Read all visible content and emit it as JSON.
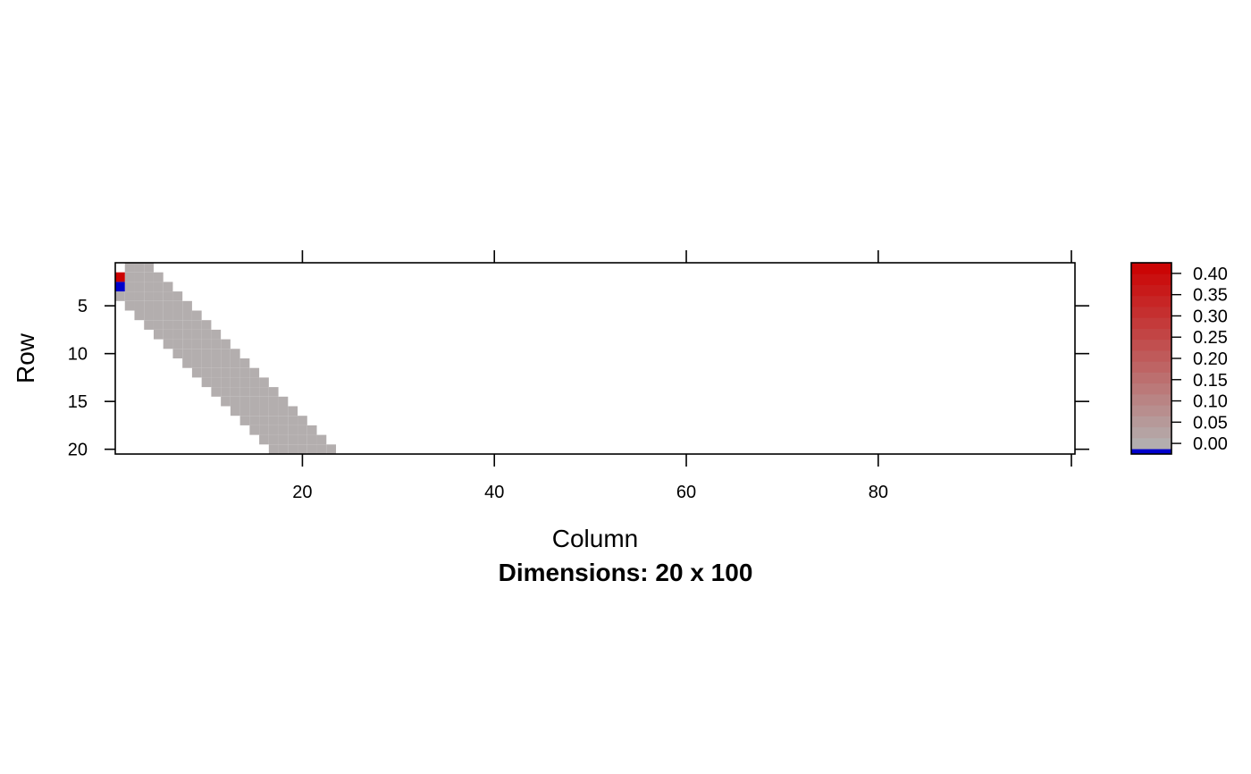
{
  "chart_data": {
    "type": "heatmap",
    "nrow": 20,
    "ncol": 100,
    "xlabel": "Column",
    "ylabel": "Row",
    "subtitle": "Dimensions: 20 x 100",
    "xlim": [
      0.5,
      100.5
    ],
    "ylim": [
      20.5,
      0.5
    ],
    "x_ticks": [
      20,
      40,
      60,
      80
    ],
    "y_ticks": [
      5,
      10,
      15,
      20
    ],
    "colors": {
      "zero": "#b3aeae",
      "negative": "#0000cc",
      "max": "#cc0000",
      "frame": "#000000"
    },
    "band": {
      "description": "nonzero entries follow the band, each row spanning the listed columns",
      "value": 0.0,
      "row_spans": [
        {
          "row": 1,
          "from": 2,
          "to": 4
        },
        {
          "row": 2,
          "from": 2,
          "to": 5
        },
        {
          "row": 3,
          "from": 2,
          "to": 6
        },
        {
          "row": 4,
          "from": 1,
          "to": 7
        },
        {
          "row": 5,
          "from": 2,
          "to": 8
        },
        {
          "row": 6,
          "from": 3,
          "to": 9
        },
        {
          "row": 7,
          "from": 4,
          "to": 10
        },
        {
          "row": 8,
          "from": 5,
          "to": 11
        },
        {
          "row": 9,
          "from": 6,
          "to": 12
        },
        {
          "row": 10,
          "from": 7,
          "to": 13
        },
        {
          "row": 11,
          "from": 8,
          "to": 14
        },
        {
          "row": 12,
          "from": 9,
          "to": 15
        },
        {
          "row": 13,
          "from": 10,
          "to": 16
        },
        {
          "row": 14,
          "from": 11,
          "to": 17
        },
        {
          "row": 15,
          "from": 12,
          "to": 18
        },
        {
          "row": 16,
          "from": 13,
          "to": 19
        },
        {
          "row": 17,
          "from": 14,
          "to": 20
        },
        {
          "row": 18,
          "from": 15,
          "to": 21
        },
        {
          "row": 19,
          "from": 16,
          "to": 22
        },
        {
          "row": 20,
          "from": 17,
          "to": 23
        }
      ]
    },
    "special_cells": [
      {
        "row": 2,
        "col": 1,
        "value": 0.42
      },
      {
        "row": 3,
        "col": 1,
        "value": -0.02
      }
    ],
    "colorkey": {
      "labels": [
        "0.40",
        "0.35",
        "0.30",
        "0.25",
        "0.20",
        "0.15",
        "0.10",
        "0.05",
        "0.00"
      ],
      "values": [
        0.4,
        0.35,
        0.3,
        0.25,
        0.2,
        0.15,
        0.1,
        0.05,
        0.0
      ],
      "range": [
        -0.025,
        0.425
      ],
      "negative_range": [
        -0.025,
        -0.0125
      ]
    }
  }
}
